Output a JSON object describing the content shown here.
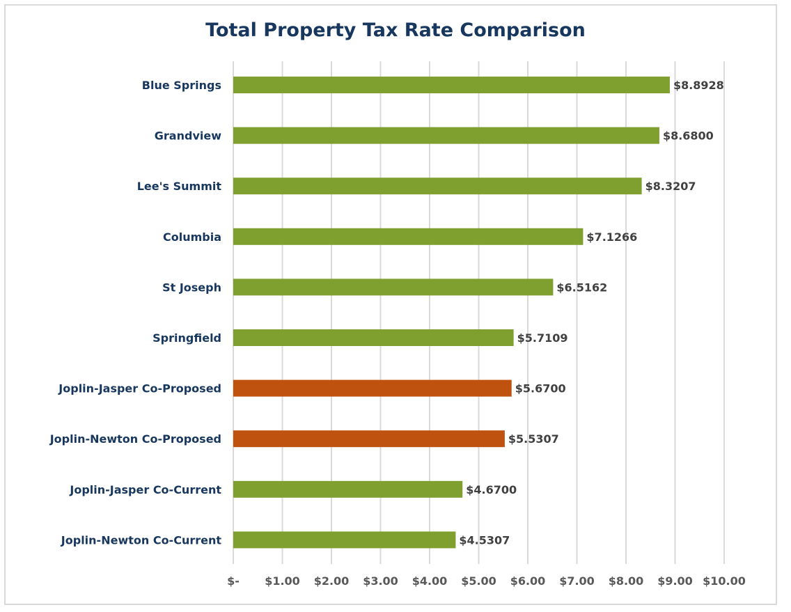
{
  "chart_data": {
    "type": "bar",
    "orientation": "horizontal",
    "title": "Total Property Tax Rate Comparison",
    "xlabel": "",
    "ylabel": "",
    "xlim": [
      0,
      10
    ],
    "grid": true,
    "legend": "none",
    "tick_labels": [
      "$-",
      "$1.00",
      "$2.00",
      "$3.00",
      "$4.00",
      "$5.00",
      "$6.00",
      "$7.00",
      "$8.00",
      "$9.00",
      "$10.00"
    ],
    "categories": [
      "Blue Springs",
      "Grandview",
      "Lee's Summit",
      "Columbia",
      "St Joseph",
      "Springfield",
      "Joplin-Jasper Co-Proposed",
      "Joplin-Newton Co-Proposed",
      "Joplin-Jasper Co-Current",
      "Joplin-Newton Co-Current"
    ],
    "values": [
      8.8928,
      8.68,
      8.3207,
      7.1266,
      6.5162,
      5.7109,
      5.67,
      5.5307,
      4.67,
      4.5307
    ],
    "data_labels": [
      "$8.8928",
      "$8.6800",
      "$8.3207",
      "$7.1266",
      "$6.5162",
      "$5.7109",
      "$5.6700",
      "$5.5307",
      "$4.6700",
      "$4.5307"
    ],
    "colors": [
      "#7f9f2f",
      "#7f9f2f",
      "#7f9f2f",
      "#7f9f2f",
      "#7f9f2f",
      "#7f9f2f",
      "#c0520f",
      "#c0520f",
      "#7f9f2f",
      "#7f9f2f"
    ],
    "gridline_color": "#d9d9d9"
  }
}
